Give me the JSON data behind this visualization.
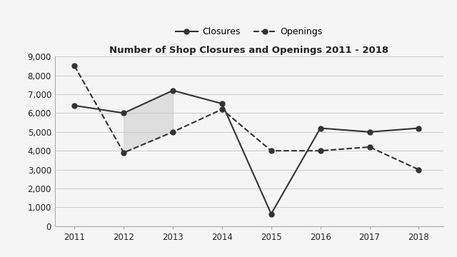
{
  "years": [
    2011,
    2012,
    2013,
    2014,
    2015,
    2016,
    2017,
    2018
  ],
  "closures": [
    6400,
    6000,
    7200,
    6500,
    650,
    5200,
    5000,
    5200
  ],
  "openings": [
    8500,
    3900,
    5000,
    6200,
    4000,
    4000,
    4200,
    3000
  ],
  "title": "Number of Shop Closures and Openings 2011 - 2018",
  "ylim": [
    0,
    9000
  ],
  "yticks": [
    0,
    1000,
    2000,
    3000,
    4000,
    5000,
    6000,
    7000,
    8000,
    9000
  ],
  "line_color": "#333333",
  "background_color": "#f5f5f5",
  "shade_color": "#c8c8c8",
  "shade_alpha": 0.5
}
